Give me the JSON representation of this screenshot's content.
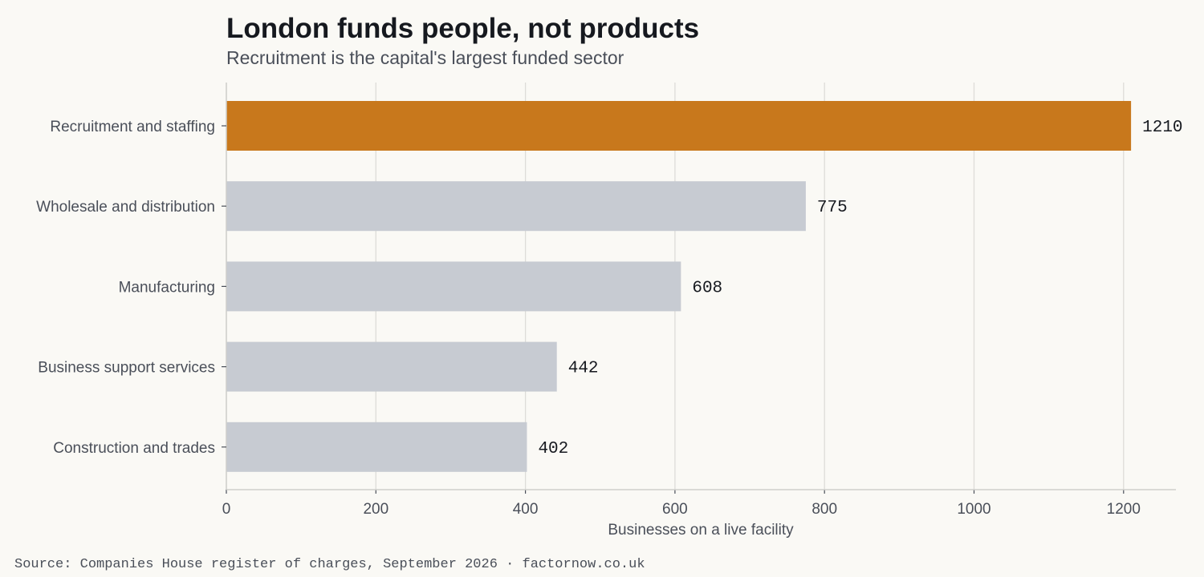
{
  "title": "London funds people, not products",
  "subtitle": "Recruitment is the capital's largest funded sector",
  "source": "Source: Companies House register of charges, September 2026 · factornow.co.uk",
  "colors": {
    "highlight": "#c8781c",
    "bar": "#c7cbd2",
    "grid": "#dddcd8",
    "axis": "#cfcfcc",
    "category_text": "#4a4f59",
    "value_text": "#16191f"
  },
  "chart_data": {
    "type": "bar",
    "orientation": "horizontal",
    "categories": [
      "Recruitment and staffing",
      "Wholesale and distribution",
      "Manufacturing",
      "Business support services",
      "Construction and trades"
    ],
    "values": [
      1210,
      775,
      608,
      442,
      402
    ],
    "highlighted_category": "Recruitment and staffing",
    "xlabel": "Businesses on a live facility",
    "ylabel": "",
    "xlim": [
      0,
      1270
    ],
    "xticks": [
      0,
      200,
      400,
      600,
      800,
      1000,
      1200
    ],
    "grid": "vertical"
  }
}
